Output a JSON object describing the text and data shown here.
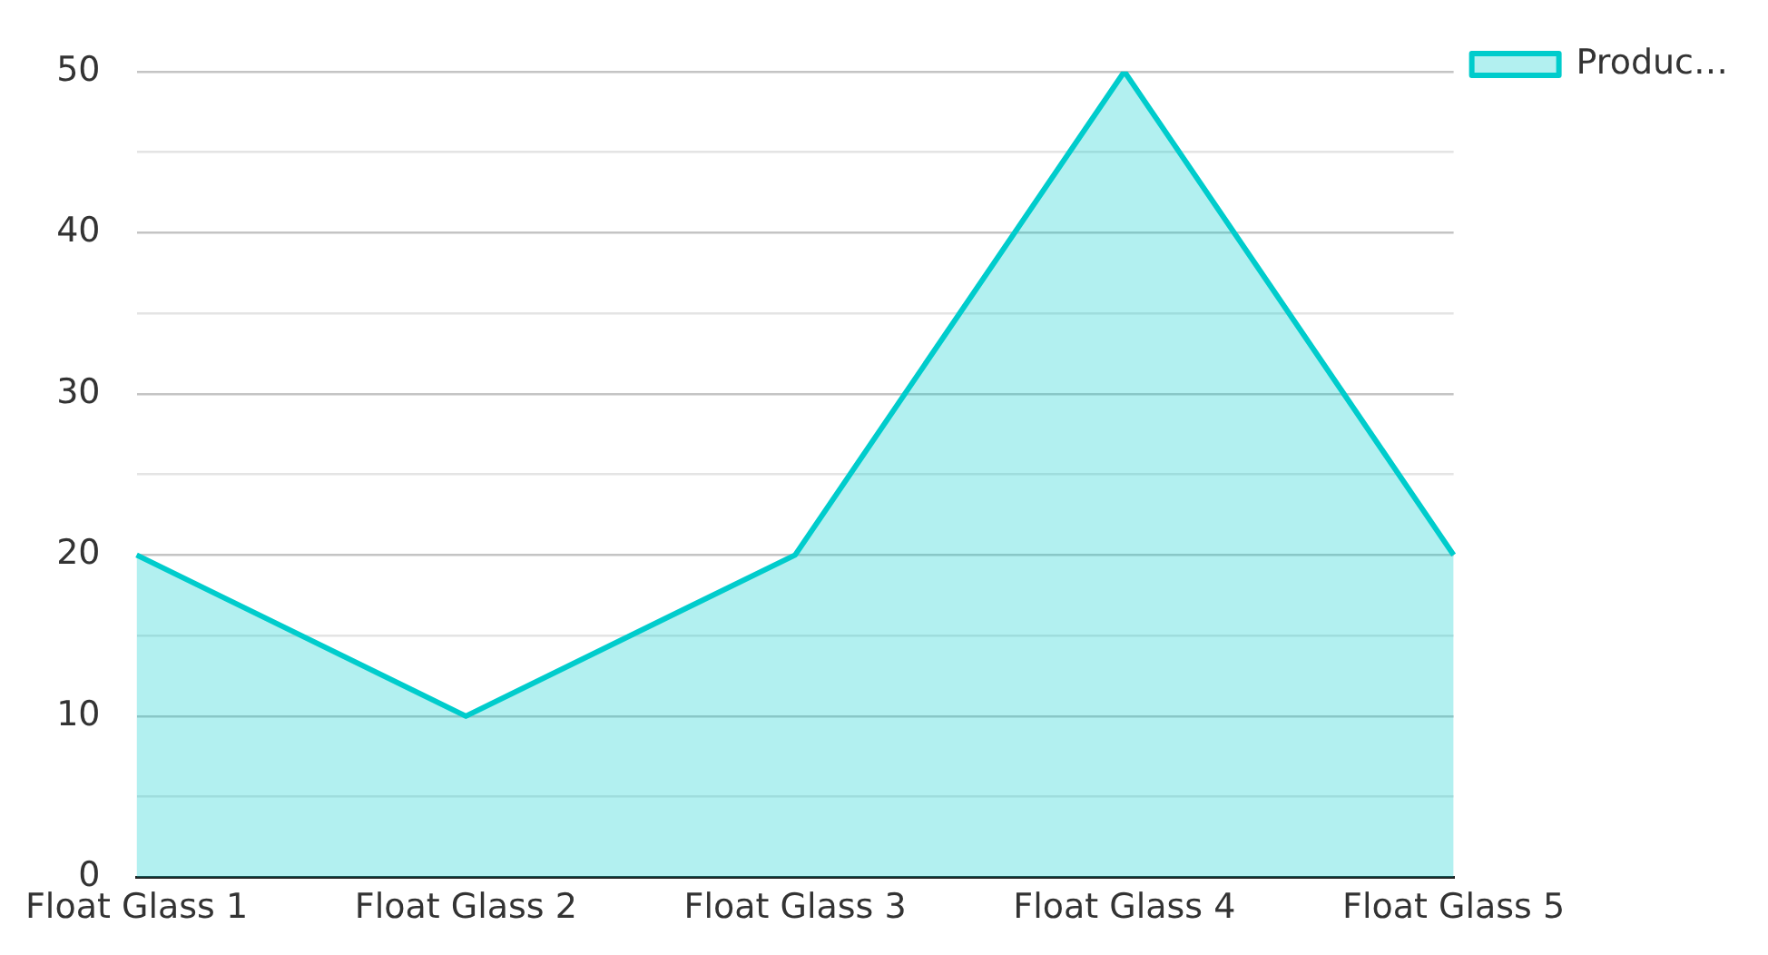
{
  "chart_data": {
    "type": "area",
    "categories": [
      "Float Glass 1",
      "Float Glass 2",
      "Float Glass 3",
      "Float Glass 4",
      "Float Glass 5"
    ],
    "series": [
      {
        "name": "Produc…",
        "color": "#00cccc",
        "values": [
          20,
          10,
          20,
          50,
          20
        ]
      }
    ],
    "ylim": [
      0,
      50
    ],
    "yticks": [
      0,
      {
        "value": 5,
        "label": null
      },
      10,
      {
        "value": 15,
        "label": null
      },
      20,
      {
        "value": 25,
        "label": null
      },
      30,
      {
        "value": 35,
        "label": null
      },
      40,
      {
        "value": 45,
        "label": null
      },
      50
    ],
    "grid": "y",
    "legend": "top right",
    "marker": "none",
    "line_style": "solid"
  }
}
